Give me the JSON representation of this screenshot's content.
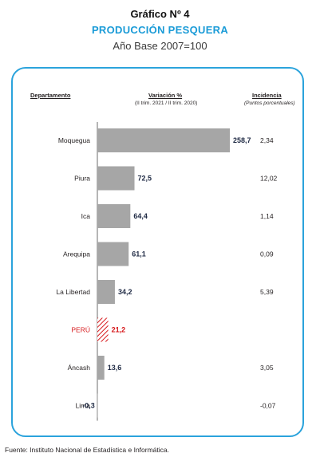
{
  "header": {
    "figure_label": "Gráfico Nº 4",
    "title": "PRODUCCIÓN  PESQUERA",
    "subtitle": "Año Base 2007=100"
  },
  "columns": {
    "department": "Departamento",
    "variation": "Variación %",
    "variation_note": "(II trim. 2021  / II trim. 2020)",
    "incidence": "Incidencia",
    "incidence_note": "(Puntos porcentuales)"
  },
  "footer": {
    "source": "Fuente: Instituto Nacional de Estadística e Informática."
  },
  "colors": {
    "bar": "#a6a6a6",
    "highlight": "#d7191c",
    "accent": "#2ba3dc"
  },
  "chart_data": {
    "type": "bar",
    "orientation": "horizontal",
    "categories": [
      "Moquegua",
      "Piura",
      "Ica",
      "Arequipa",
      "La Libertad",
      "PERÚ",
      "Áncash",
      "Lima"
    ],
    "values": [
      258.7,
      72.5,
      64.4,
      61.1,
      34.2,
      21.2,
      13.6,
      -0.3
    ],
    "value_labels": [
      "258,7",
      "72,5",
      "64,4",
      "61,1",
      "34,2",
      "21,2",
      "13,6",
      "-0,3"
    ],
    "incidence_labels": [
      "2,34",
      "12,02",
      "1,14",
      "0,09",
      "5,39",
      "",
      "3,05",
      "-0,07"
    ],
    "highlight": "PERÚ",
    "grid": false,
    "legend": "none"
  }
}
